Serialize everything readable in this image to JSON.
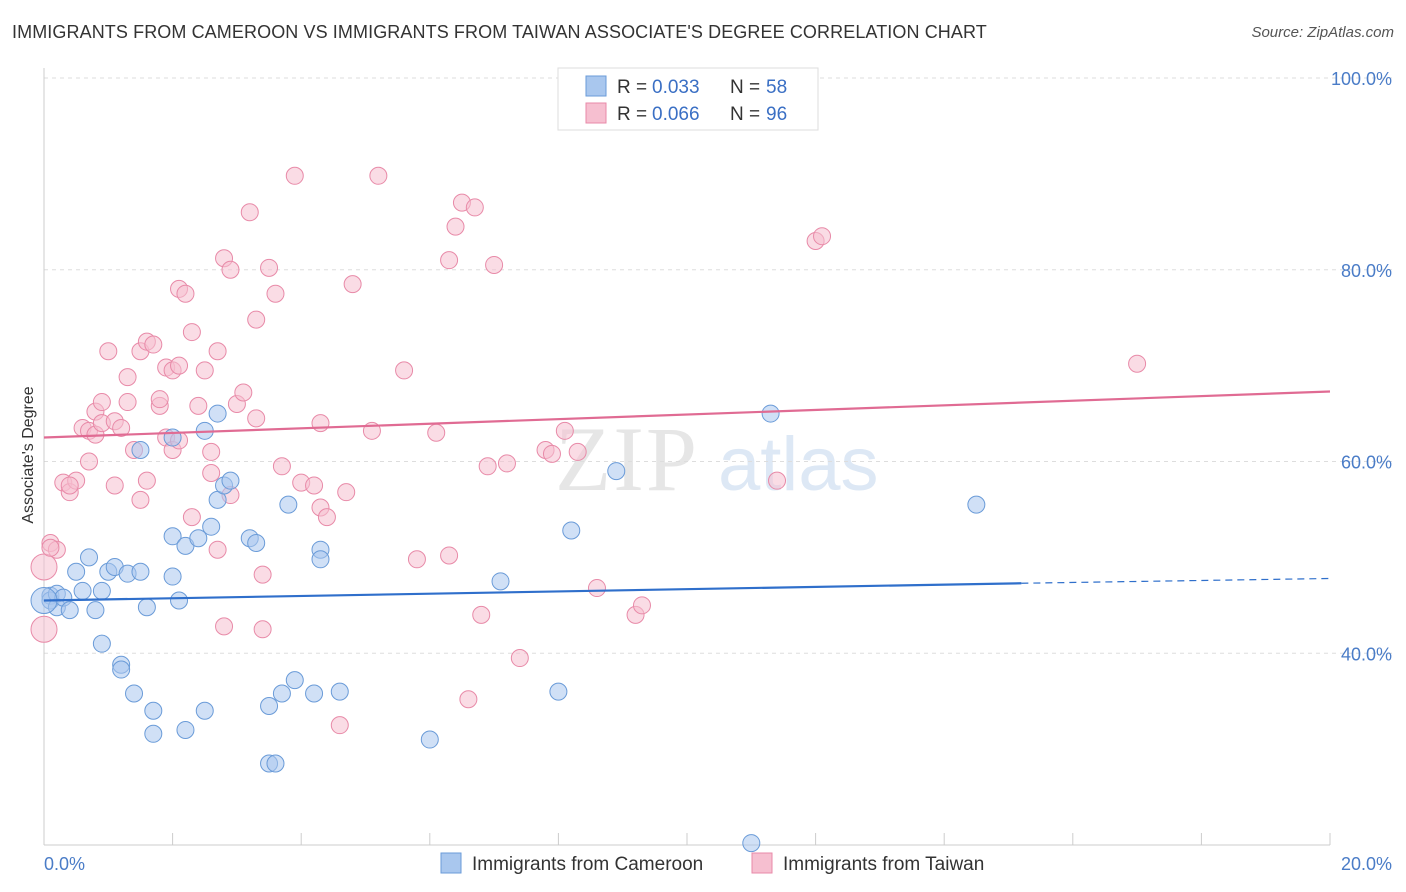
{
  "header": {
    "title": "IMMIGRANTS FROM CAMEROON VS IMMIGRANTS FROM TAIWAN ASSOCIATE'S DEGREE CORRELATION CHART",
    "source": "Source: ZipAtlas.com"
  },
  "watermark": "ZIPatlas",
  "legend": {
    "rows": [
      {
        "r_label": "R = ",
        "r_value": "0.033",
        "n_label": "N = ",
        "n_value": "58"
      },
      {
        "r_label": "R = ",
        "r_value": "0.066",
        "n_label": "N = ",
        "n_value": "96"
      }
    ]
  },
  "colors": {
    "cameroon_fill": "#a9c7ee",
    "cameroon_stroke": "#6a9bd8",
    "cameroon_line": "#2f6fcb",
    "taiwan_fill": "#f6bfd0",
    "taiwan_stroke": "#e88aa8",
    "taiwan_line": "#e06b93",
    "tick_blue": "#4a7cc7"
  },
  "chart_data": {
    "type": "scatter",
    "title": "IMMIGRANTS FROM CAMEROON VS IMMIGRANTS FROM TAIWAN ASSOCIATE'S DEGREE CORRELATION CHART",
    "xlabel": "",
    "ylabel": "Associate's Degree",
    "xlim": [
      0,
      20
    ],
    "ylim": [
      20,
      100
    ],
    "x_tick_labels": [
      "0.0%",
      "20.0%"
    ],
    "y_tick_labels": [
      "40.0%",
      "60.0%",
      "80.0%",
      "100.0%"
    ],
    "y_tick_values": [
      40,
      60,
      80,
      100
    ],
    "grid": true,
    "series": [
      {
        "name": "Immigrants from Cameroon",
        "r": 0.033,
        "n": 58,
        "trend": {
          "x0": 0,
          "y0": 45.5,
          "x1": 15.2,
          "y1": 47.3,
          "dashed_to": 20,
          "dashed_y": 47.8
        },
        "points": [
          [
            0.1,
            46.0
          ],
          [
            0.1,
            45.5
          ],
          [
            0.2,
            46.2
          ],
          [
            0.2,
            44.8
          ],
          [
            0.3,
            45.8
          ],
          [
            0.4,
            44.5
          ],
          [
            0.5,
            48.5
          ],
          [
            0.6,
            46.5
          ],
          [
            0.7,
            50.0
          ],
          [
            0.8,
            44.5
          ],
          [
            0.9,
            46.5
          ],
          [
            0.9,
            41.0
          ],
          [
            1.0,
            48.5
          ],
          [
            1.1,
            49.0
          ],
          [
            1.2,
            38.8
          ],
          [
            1.2,
            38.3
          ],
          [
            1.3,
            48.3
          ],
          [
            1.4,
            35.8
          ],
          [
            1.5,
            48.5
          ],
          [
            1.5,
            61.2
          ],
          [
            1.6,
            44.8
          ],
          [
            1.7,
            34.0
          ],
          [
            1.7,
            31.6
          ],
          [
            2.0,
            62.5
          ],
          [
            2.0,
            52.2
          ],
          [
            2.0,
            48.0
          ],
          [
            2.1,
            45.5
          ],
          [
            2.2,
            32.0
          ],
          [
            2.2,
            51.2
          ],
          [
            2.4,
            52.0
          ],
          [
            2.5,
            63.2
          ],
          [
            2.5,
            34.0
          ],
          [
            2.6,
            53.2
          ],
          [
            2.7,
            56.0
          ],
          [
            2.7,
            65.0
          ],
          [
            2.8,
            57.5
          ],
          [
            2.9,
            58.0
          ],
          [
            3.2,
            52.0
          ],
          [
            3.3,
            51.5
          ],
          [
            3.5,
            28.5
          ],
          [
            3.5,
            34.5
          ],
          [
            3.6,
            28.5
          ],
          [
            3.7,
            35.8
          ],
          [
            3.8,
            55.5
          ],
          [
            3.9,
            37.2
          ],
          [
            4.2,
            35.8
          ],
          [
            4.3,
            50.8
          ],
          [
            4.3,
            49.8
          ],
          [
            4.6,
            36.0
          ],
          [
            6.0,
            31.0
          ],
          [
            7.1,
            47.5
          ],
          [
            8.0,
            36.0
          ],
          [
            8.2,
            52.8
          ],
          [
            8.9,
            59.0
          ],
          [
            11.0,
            20.2
          ],
          [
            11.3,
            65.0
          ],
          [
            14.5,
            55.5
          ],
          [
            0.0,
            45.5
          ]
        ]
      },
      {
        "name": "Immigrants from Taiwan",
        "r": 0.066,
        "n": 96,
        "trend": {
          "x0": 0,
          "y0": 62.5,
          "x1": 20,
          "y1": 67.3
        },
        "points": [
          [
            0.0,
            42.5
          ],
          [
            0.0,
            49.0
          ],
          [
            0.1,
            51.5
          ],
          [
            0.2,
            50.8
          ],
          [
            0.3,
            57.8
          ],
          [
            0.4,
            56.8
          ],
          [
            0.5,
            58.0
          ],
          [
            0.6,
            63.5
          ],
          [
            0.7,
            63.2
          ],
          [
            0.7,
            60.0
          ],
          [
            0.8,
            62.8
          ],
          [
            0.8,
            65.2
          ],
          [
            0.9,
            66.2
          ],
          [
            0.9,
            64.0
          ],
          [
            1.0,
            71.5
          ],
          [
            1.1,
            57.5
          ],
          [
            1.1,
            64.2
          ],
          [
            1.2,
            63.5
          ],
          [
            1.3,
            66.2
          ],
          [
            1.3,
            68.8
          ],
          [
            1.4,
            61.2
          ],
          [
            1.5,
            56.0
          ],
          [
            1.5,
            71.5
          ],
          [
            1.6,
            58.0
          ],
          [
            1.6,
            72.5
          ],
          [
            1.7,
            72.2
          ],
          [
            1.8,
            65.8
          ],
          [
            1.8,
            66.5
          ],
          [
            1.9,
            62.5
          ],
          [
            1.9,
            69.8
          ],
          [
            2.0,
            69.5
          ],
          [
            2.0,
            61.2
          ],
          [
            2.1,
            70.0
          ],
          [
            2.1,
            62.2
          ],
          [
            2.1,
            78.0
          ],
          [
            2.2,
            77.5
          ],
          [
            2.3,
            73.5
          ],
          [
            2.3,
            54.2
          ],
          [
            2.4,
            65.8
          ],
          [
            2.5,
            69.5
          ],
          [
            2.6,
            58.8
          ],
          [
            2.6,
            61.0
          ],
          [
            2.7,
            50.8
          ],
          [
            2.7,
            71.5
          ],
          [
            2.8,
            81.2
          ],
          [
            2.8,
            42.8
          ],
          [
            2.9,
            80.0
          ],
          [
            2.9,
            56.5
          ],
          [
            3.0,
            66.0
          ],
          [
            3.1,
            67.2
          ],
          [
            3.2,
            86.0
          ],
          [
            3.3,
            74.8
          ],
          [
            3.3,
            64.5
          ],
          [
            3.4,
            48.2
          ],
          [
            3.4,
            42.5
          ],
          [
            3.5,
            80.2
          ],
          [
            3.6,
            77.5
          ],
          [
            3.7,
            59.5
          ],
          [
            3.9,
            89.8
          ],
          [
            4.0,
            57.8
          ],
          [
            4.2,
            57.5
          ],
          [
            4.3,
            55.2
          ],
          [
            4.3,
            64.0
          ],
          [
            4.4,
            54.2
          ],
          [
            4.6,
            32.5
          ],
          [
            4.7,
            56.8
          ],
          [
            4.8,
            78.5
          ],
          [
            5.1,
            63.2
          ],
          [
            5.2,
            89.8
          ],
          [
            5.6,
            69.5
          ],
          [
            5.8,
            49.8
          ],
          [
            6.1,
            63.0
          ],
          [
            6.3,
            50.2
          ],
          [
            6.3,
            81.0
          ],
          [
            6.4,
            84.5
          ],
          [
            6.5,
            87.0
          ],
          [
            6.6,
            35.2
          ],
          [
            6.7,
            86.5
          ],
          [
            6.8,
            44.0
          ],
          [
            6.9,
            59.5
          ],
          [
            7.0,
            80.5
          ],
          [
            7.2,
            59.8
          ],
          [
            7.4,
            39.5
          ],
          [
            7.8,
            61.2
          ],
          [
            7.9,
            60.8
          ],
          [
            8.1,
            63.2
          ],
          [
            8.3,
            61.0
          ],
          [
            8.6,
            46.8
          ],
          [
            9.2,
            44.0
          ],
          [
            9.3,
            45.0
          ],
          [
            11.4,
            58.0
          ],
          [
            12.0,
            83.0
          ],
          [
            12.1,
            83.5
          ],
          [
            17.0,
            70.2
          ],
          [
            0.1,
            51.0
          ],
          [
            0.4,
            57.5
          ]
        ]
      }
    ]
  },
  "bottom_legend": {
    "items": [
      "Immigrants from Cameroon",
      "Immigrants from Taiwan"
    ]
  }
}
